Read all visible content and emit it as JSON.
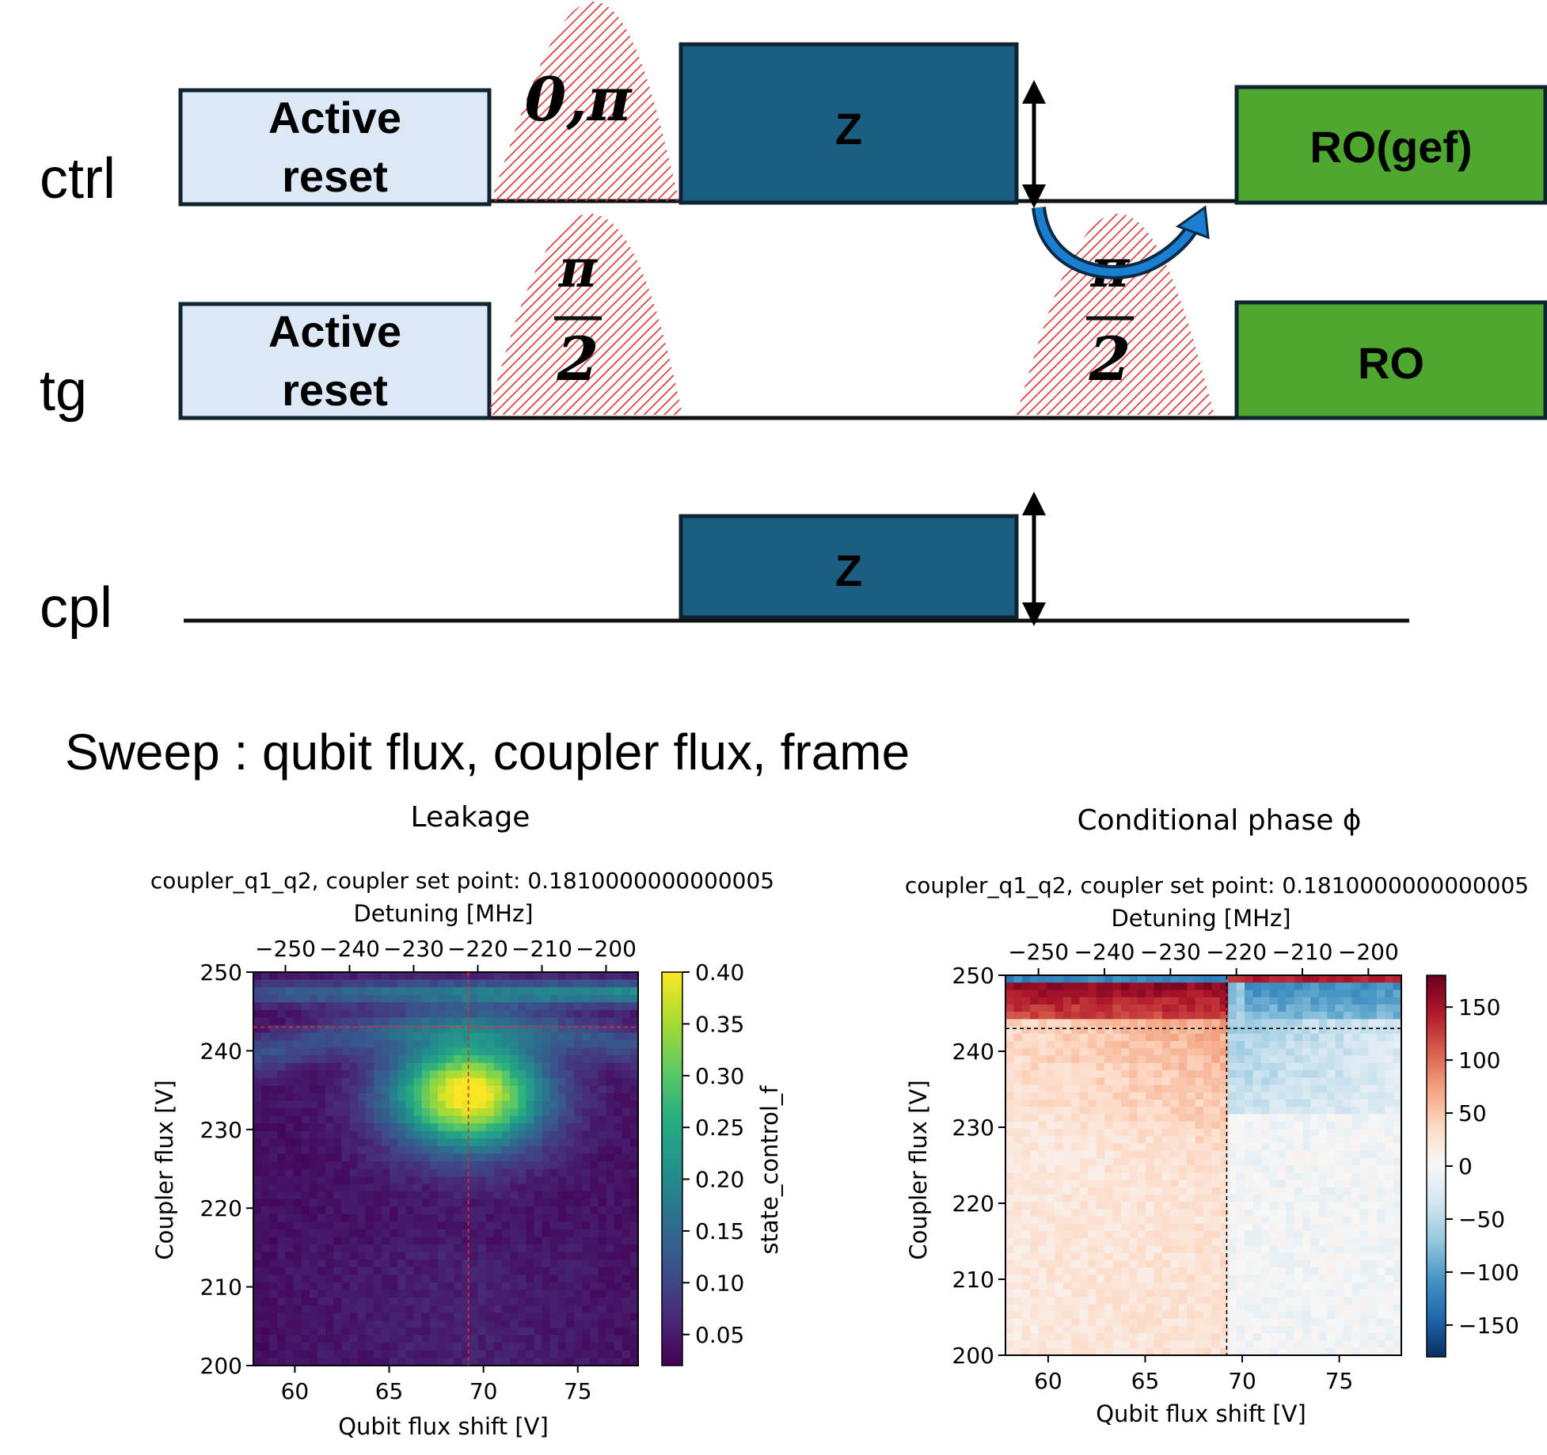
{
  "pulse_diagram": {
    "lanes": {
      "ctrl": "ctrl",
      "tg": "tg",
      "cpl": "cpl"
    },
    "boxes": {
      "ctrl_reset_line1": "Active",
      "ctrl_reset_line2": "reset",
      "tg_reset_line1": "Active",
      "tg_reset_line2": "reset",
      "ctrl_z": "Z",
      "cpl_z": "Z",
      "ctrl_ro": "RO(gef)",
      "tg_ro": "RO"
    },
    "pulses": {
      "ctrl_pulse": "0,π",
      "tg_pulse1_num": "π",
      "tg_pulse1_den": "2",
      "tg_pulse2_num": "π",
      "tg_pulse2_den": "2"
    },
    "colors": {
      "reset_fill": "#dde8f6",
      "z_fill": "#1a5e82",
      "ro_fill": "#4ea72e",
      "pulse_hatch": "#e03030",
      "swap_arrow": "#1a7fd0"
    }
  },
  "sweep_text": "Sweep : qubit flux, coupler flux, frame",
  "chart_data": [
    {
      "type": "heatmap",
      "title": "Leakage",
      "subtitle": "coupler_q1_q2, coupler set point: 0.1810000000000005",
      "xlabel": "Qubit flux shift [V]",
      "top_xlabel": "Detuning [MHz]",
      "ylabel": "Coupler flux [V]",
      "colorbar_label": "state_control_f",
      "colormap": "viridis",
      "x_ticks": [
        "60",
        "65",
        "70",
        "75"
      ],
      "top_x_ticks": [
        "−250",
        "−240",
        "−230",
        "−220",
        "−210",
        "−200"
      ],
      "y_ticks": [
        "250",
        "240",
        "230",
        "220",
        "210",
        "200"
      ],
      "colorbar_ticks": [
        "0.40",
        "0.35",
        "0.30",
        "0.25",
        "0.20",
        "0.15",
        "0.10",
        "0.05"
      ],
      "xlim": [
        57.8,
        78.2
      ],
      "ylim": [
        200,
        250
      ],
      "clim": [
        0.02,
        0.4
      ],
      "marker_x": 69.2,
      "marker_y": 243,
      "marker_color": "#ff2020",
      "grid": false
    },
    {
      "type": "heatmap",
      "title": "Conditional phase ϕ",
      "subtitle": "coupler_q1_q2, coupler set point: 0.1810000000000005",
      "xlabel": "Qubit flux shift [V]",
      "top_xlabel": "Detuning [MHz]",
      "ylabel": "Coupler flux [V]",
      "colormap": "RdBu_r",
      "x_ticks": [
        "60",
        "65",
        "70",
        "75"
      ],
      "top_x_ticks": [
        "−250",
        "−240",
        "−230",
        "−220",
        "−210",
        "−200"
      ],
      "y_ticks": [
        "250",
        "240",
        "230",
        "220",
        "210",
        "200"
      ],
      "colorbar_ticks": [
        "150",
        "100",
        "50",
        "0",
        "−50",
        "−100",
        "−150"
      ],
      "xlim": [
        57.8,
        78.2
      ],
      "ylim": [
        200,
        250
      ],
      "clim": [
        -180,
        180
      ],
      "marker_x": 69.2,
      "marker_y": 243,
      "marker_color": "#000000",
      "grid": false
    }
  ]
}
